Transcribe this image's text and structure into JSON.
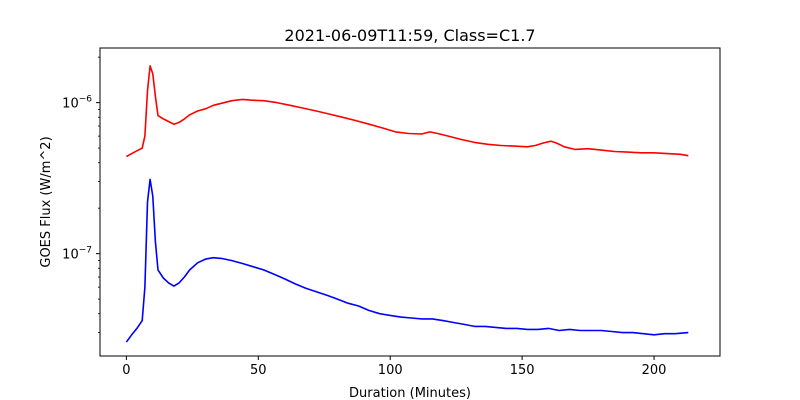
{
  "chart_data": {
    "type": "line",
    "title": "2021-06-09T11:59, Class=C1.7",
    "xlabel": "Duration (Minutes)",
    "ylabel": "GOES Flux (W/m^2)",
    "xlim": [
      -10,
      225
    ],
    "ylim": [
      2.1e-08,
      2.3e-06
    ],
    "yscale": "log",
    "grid": false,
    "x_ticks": [
      0,
      50,
      100,
      150,
      200
    ],
    "x_tick_labels": [
      "0",
      "50",
      "100",
      "150",
      "200"
    ],
    "y_ticks": [
      1e-07,
      1e-06
    ],
    "y_tick_base": "10",
    "y_tick_exponents": [
      "−7",
      "−6"
    ],
    "series": [
      {
        "color": "#ff0000",
        "x": [
          0,
          2,
          4,
          6,
          7,
          8,
          9,
          10,
          11,
          12,
          14,
          16,
          18,
          20,
          22,
          24,
          27,
          30,
          33,
          36,
          40,
          44,
          47,
          52,
          57,
          62,
          67,
          72,
          77,
          82,
          87,
          92,
          97,
          102,
          107,
          112,
          115,
          118,
          122,
          127,
          132,
          137,
          142,
          147,
          152,
          155,
          158,
          161,
          163,
          166,
          170,
          175,
          180,
          185,
          190,
          195,
          200,
          205,
          210,
          213
        ],
        "y": [
          4.4e-07,
          4.6e-07,
          4.8e-07,
          5e-07,
          6e-07,
          1.2e-06,
          1.75e-06,
          1.55e-06,
          1.1e-06,
          8.2e-07,
          7.8e-07,
          7.5e-07,
          7.2e-07,
          7.4e-07,
          7.8e-07,
          8.3e-07,
          8.8e-07,
          9.1e-07,
          9.6e-07,
          9.9e-07,
          1.03e-06,
          1.05e-06,
          1.04e-06,
          1.03e-06,
          1e-06,
          9.6e-07,
          9.2e-07,
          8.8e-07,
          8.4e-07,
          8e-07,
          7.6e-07,
          7.2e-07,
          6.8e-07,
          6.4e-07,
          6.25e-07,
          6.2e-07,
          6.4e-07,
          6.25e-07,
          6e-07,
          5.7e-07,
          5.45e-07,
          5.3e-07,
          5.2e-07,
          5.15e-07,
          5.1e-07,
          5.2e-07,
          5.4e-07,
          5.55e-07,
          5.4e-07,
          5.1e-07,
          4.9e-07,
          4.95e-07,
          4.85e-07,
          4.75e-07,
          4.7e-07,
          4.65e-07,
          4.65e-07,
          4.6e-07,
          4.55e-07,
          4.45e-07
        ]
      },
      {
        "color": "#0000ff",
        "x": [
          0,
          2,
          4,
          6,
          7,
          8,
          9,
          10,
          11,
          12,
          14,
          16,
          18,
          20,
          22,
          24,
          27,
          30,
          33,
          36,
          40,
          44,
          48,
          52,
          56,
          60,
          64,
          68,
          72,
          76,
          80,
          84,
          88,
          92,
          96,
          100,
          104,
          108,
          112,
          116,
          120,
          124,
          128,
          132,
          136,
          140,
          144,
          148,
          152,
          156,
          160,
          164,
          168,
          172,
          176,
          180,
          184,
          188,
          192,
          196,
          200,
          204,
          208,
          213
        ],
        "y": [
          2.6e-08,
          2.9e-08,
          3.2e-08,
          3.6e-08,
          6e-08,
          2.2e-07,
          3.1e-07,
          2.4e-07,
          1.2e-07,
          7.8e-08,
          6.9e-08,
          6.4e-08,
          6.1e-08,
          6.4e-08,
          7e-08,
          7.8e-08,
          8.7e-08,
          9.2e-08,
          9.4e-08,
          9.3e-08,
          9e-08,
          8.6e-08,
          8.2e-08,
          7.8e-08,
          7.3e-08,
          6.8e-08,
          6.3e-08,
          5.9e-08,
          5.6e-08,
          5.3e-08,
          5e-08,
          4.7e-08,
          4.5e-08,
          4.2e-08,
          4e-08,
          3.9e-08,
          3.8e-08,
          3.75e-08,
          3.7e-08,
          3.7e-08,
          3.6e-08,
          3.5e-08,
          3.4e-08,
          3.3e-08,
          3.3e-08,
          3.25e-08,
          3.2e-08,
          3.2e-08,
          3.15e-08,
          3.15e-08,
          3.2e-08,
          3.1e-08,
          3.15e-08,
          3.1e-08,
          3.1e-08,
          3.1e-08,
          3.05e-08,
          3e-08,
          3e-08,
          2.95e-08,
          2.9e-08,
          2.95e-08,
          2.95e-08,
          3e-08
        ]
      }
    ]
  }
}
